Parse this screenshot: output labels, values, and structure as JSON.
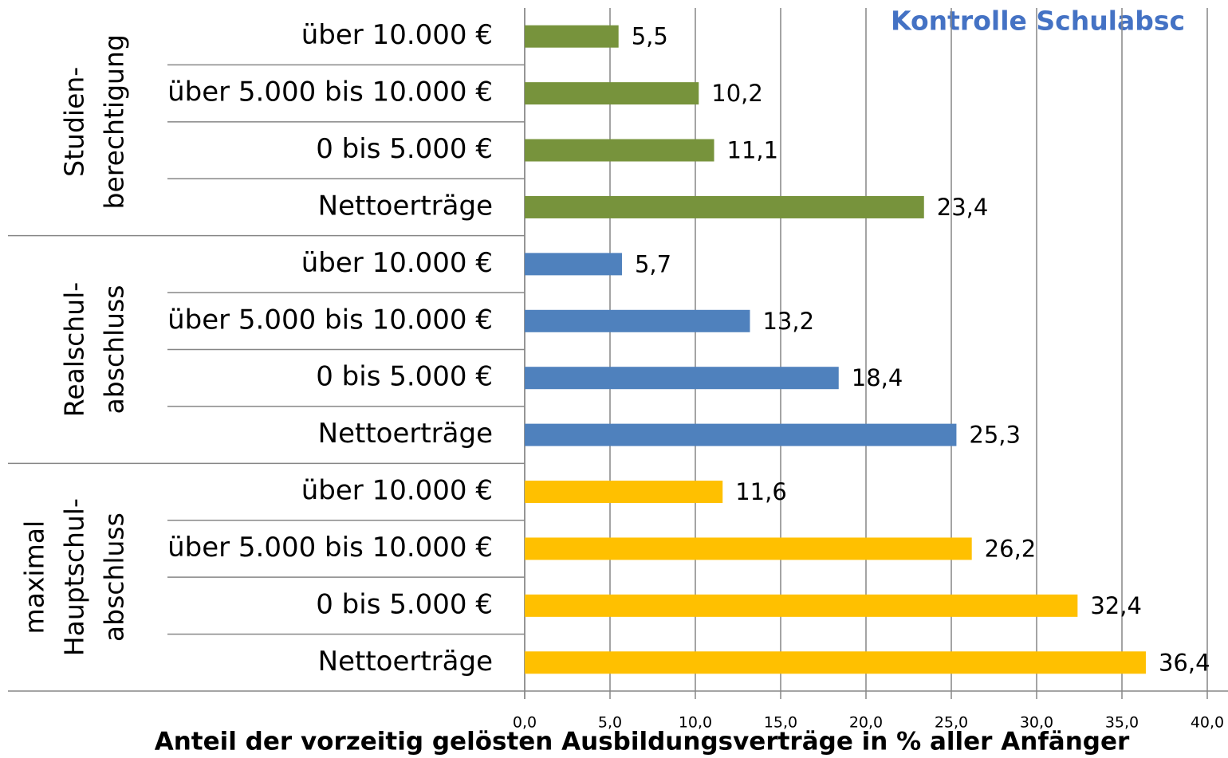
{
  "chart_data": {
    "type": "bar",
    "title": "Kontrolle Schulabsc",
    "x_label": "Anteil der vorzeitig gelösten Ausbildungsverträge in % aller Anfänger",
    "xlim": [
      0,
      40
    ],
    "xticks": [
      {
        "value": 0,
        "label": "0,0"
      },
      {
        "value": 5,
        "label": "5,0"
      },
      {
        "value": 10,
        "label": "10,0"
      },
      {
        "value": 15,
        "label": "15,0"
      },
      {
        "value": 20,
        "label": "20,0"
      },
      {
        "value": 25,
        "label": "25,0"
      },
      {
        "value": 30,
        "label": "30,0"
      },
      {
        "value": 35,
        "label": "35,0"
      },
      {
        "value": 40,
        "label": "40,0"
      }
    ],
    "grid": true,
    "groups": [
      {
        "label": [
          "Studien-",
          "berechtigung"
        ],
        "color": "#77933c",
        "categories": [
          "über 10.000 €",
          "über 5.000 bis 10.000 €",
          "0 bis 5.000 €",
          "Nettoerträge"
        ],
        "values": [
          5.5,
          10.2,
          11.1,
          23.4
        ],
        "value_labels": [
          "5,5",
          "10,2",
          "11,1",
          "23,4"
        ]
      },
      {
        "label": [
          "Realschul-",
          "abschluss"
        ],
        "color": "#4f81bd",
        "categories": [
          "über 10.000 €",
          "über 5.000 bis 10.000 €",
          "0 bis 5.000 €",
          "Nettoerträge"
        ],
        "values": [
          5.7,
          13.2,
          18.4,
          25.3
        ],
        "value_labels": [
          "5,7",
          "13,2",
          "18,4",
          "25,3"
        ]
      },
      {
        "label": [
          "maximal",
          "Hauptschul-",
          "abschluss"
        ],
        "color": "#ffc000",
        "categories": [
          "über 10.000 €",
          "über 5.000 bis 10.000 €",
          "0 bis 5.000 €",
          "Nettoerträge"
        ],
        "values": [
          11.6,
          26.2,
          32.4,
          36.4
        ],
        "value_labels": [
          "11,6",
          "26,2",
          "32,4",
          "36,4"
        ]
      }
    ]
  }
}
